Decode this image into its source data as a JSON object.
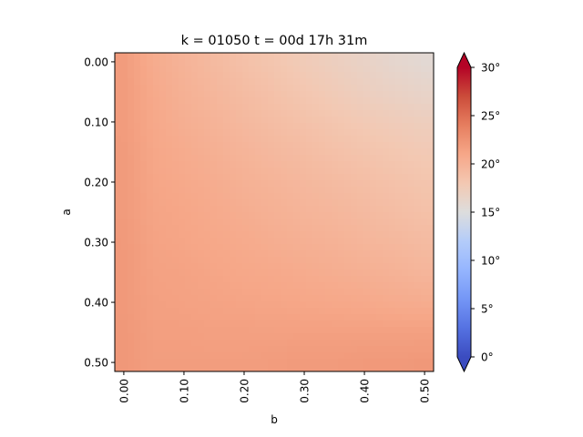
{
  "chart_data": {
    "type": "heatmap",
    "title": "k = 01050 t = 00d 17h 31m",
    "xlabel": "b",
    "ylabel": "a",
    "x_ticks": [
      "0.00",
      "0.10",
      "0.20",
      "0.30",
      "0.40",
      "0.50"
    ],
    "y_ticks": [
      "0.00",
      "0.10",
      "0.20",
      "0.30",
      "0.40",
      "0.50"
    ],
    "xlim": [
      -0.015,
      0.515
    ],
    "ylim": [
      0.515,
      -0.015
    ],
    "x_tick_rotation": "vertical",
    "y_axis_direction": "top-to-bottom",
    "colormap": "coolwarm",
    "value_range": [
      0,
      30
    ],
    "colorbar": {
      "ticks": [
        "0°",
        "5°",
        "10°",
        "15°",
        "20°",
        "25°",
        "30°"
      ],
      "tick_values": [
        0,
        5,
        10,
        15,
        20,
        25,
        30
      ],
      "extend": "both",
      "placement": "right"
    },
    "grid": false,
    "x": [
      0.0,
      0.05,
      0.1,
      0.15,
      0.2,
      0.25,
      0.3,
      0.35,
      0.4,
      0.45,
      0.5
    ],
    "y": [
      0.0,
      0.05,
      0.1,
      0.15,
      0.2,
      0.25,
      0.3,
      0.35,
      0.4,
      0.45,
      0.5
    ],
    "values": [
      [
        21.8,
        20.6,
        19.9,
        19.3,
        18.7,
        18.2,
        17.6,
        17.1,
        16.6,
        16.1,
        15.7
      ],
      [
        21.8,
        20.8,
        20.1,
        19.6,
        19.1,
        18.6,
        18.1,
        17.6,
        17.1,
        16.7,
        16.4
      ],
      [
        21.8,
        20.9,
        20.3,
        19.9,
        19.4,
        19.0,
        18.6,
        18.2,
        17.8,
        17.5,
        17.2
      ],
      [
        21.9,
        21.0,
        20.6,
        20.2,
        19.8,
        19.4,
        19.1,
        18.7,
        18.4,
        18.1,
        17.8
      ],
      [
        21.9,
        21.1,
        20.8,
        20.5,
        20.1,
        19.8,
        19.5,
        19.2,
        18.9,
        18.6,
        18.3
      ],
      [
        21.9,
        21.2,
        21.0,
        20.7,
        20.4,
        20.1,
        19.8,
        19.6,
        19.3,
        19.0,
        18.7
      ],
      [
        22.0,
        21.3,
        21.1,
        20.9,
        20.7,
        20.4,
        20.2,
        20.0,
        19.7,
        19.5,
        19.2
      ],
      [
        22.0,
        21.4,
        21.3,
        21.1,
        20.9,
        20.8,
        20.6,
        20.4,
        20.2,
        20.0,
        19.7
      ],
      [
        22.0,
        21.5,
        21.4,
        21.3,
        21.2,
        21.1,
        21.0,
        20.9,
        20.8,
        20.6,
        20.5
      ],
      [
        22.1,
        21.6,
        21.6,
        21.5,
        21.5,
        21.5,
        21.5,
        21.5,
        21.5,
        21.5,
        21.5
      ],
      [
        22.1,
        21.7,
        21.7,
        21.7,
        21.7,
        21.8,
        21.9,
        21.9,
        22.0,
        22.0,
        22.1
      ]
    ]
  }
}
